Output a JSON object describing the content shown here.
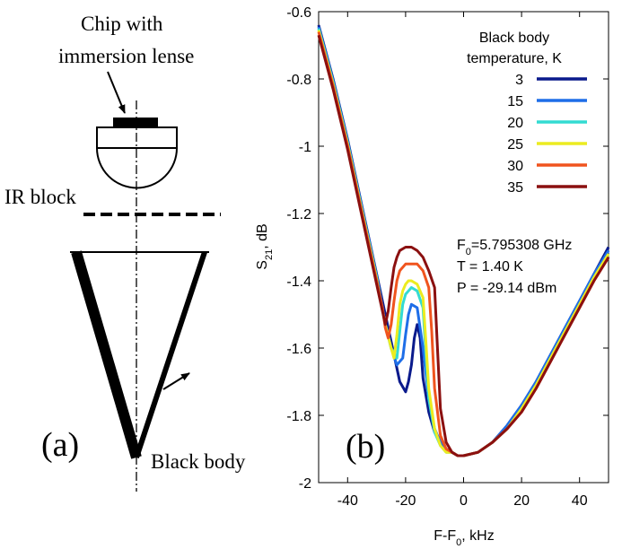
{
  "schematic": {
    "chip_label_line1": "Chip with",
    "chip_label_line2": "immersion lense",
    "ir_block_label": "IR block",
    "black_body_label": "Black body",
    "panel_label": "(a)"
  },
  "chart_data": {
    "type": "line",
    "panel_label": "(b)",
    "xlabel_main": "F-F",
    "xlabel_sub": "0",
    "xlabel_tail": ", kHz",
    "ylabel_main": "S",
    "ylabel_sub": "21",
    "ylabel_tail": ", dB",
    "xlim": [
      -50,
      50
    ],
    "ylim": [
      -2.0,
      -0.6
    ],
    "xticks": [
      -40,
      -20,
      0,
      20,
      40
    ],
    "xtick_labels": [
      "-40",
      "-20",
      "0",
      "20",
      "40"
    ],
    "yticks": [
      -2.0,
      -1.8,
      -1.6,
      -1.4,
      -1.2,
      -1.0,
      -0.8,
      -0.6
    ],
    "ytick_labels": [
      "-2",
      "-1.8",
      "-1.6",
      "-1.4",
      "-1.2",
      "-1",
      "-0.8",
      "-0.6"
    ],
    "grid": false,
    "legend_title_line1": "Black body",
    "legend_title_line2": "temperature, K",
    "legend_placement": "top-right",
    "annotation": {
      "f0_main": "F",
      "f0_sub": "0",
      "f0_tail": "=5.795308 GHz",
      "temperature": "T = 1.40 K",
      "power": "P = -29.14 dBm"
    },
    "series": [
      {
        "name": "3",
        "color": "#0a1a8c",
        "x": [
          -50,
          -45,
          -40,
          -35,
          -30,
          -26,
          -24,
          -22,
          -20,
          -19,
          -18,
          -17,
          -16,
          -15,
          -14,
          -12,
          -10,
          -8,
          -6,
          -4,
          -2,
          0,
          5,
          10,
          15,
          20,
          25,
          30,
          35,
          40,
          45,
          50
        ],
        "y": [
          -0.64,
          -0.8,
          -0.98,
          -1.18,
          -1.38,
          -1.54,
          -1.62,
          -1.7,
          -1.73,
          -1.7,
          -1.65,
          -1.57,
          -1.53,
          -1.57,
          -1.69,
          -1.79,
          -1.85,
          -1.88,
          -1.9,
          -1.91,
          -1.92,
          -1.92,
          -1.91,
          -1.88,
          -1.83,
          -1.77,
          -1.7,
          -1.62,
          -1.54,
          -1.46,
          -1.38,
          -1.3
        ]
      },
      {
        "name": "15",
        "color": "#1e6ee8",
        "x": [
          -50,
          -45,
          -40,
          -35,
          -30,
          -27,
          -25,
          -23,
          -21,
          -20,
          -19,
          -18,
          -16,
          -14,
          -12,
          -10,
          -8,
          -6,
          -4,
          -2,
          0,
          5,
          10,
          15,
          20,
          25,
          30,
          35,
          40,
          45,
          50
        ],
        "y": [
          -0.645,
          -0.805,
          -0.985,
          -1.185,
          -1.385,
          -1.53,
          -1.6,
          -1.65,
          -1.63,
          -1.56,
          -1.5,
          -1.47,
          -1.48,
          -1.6,
          -1.75,
          -1.84,
          -1.88,
          -1.9,
          -1.91,
          -1.92,
          -1.92,
          -1.91,
          -1.88,
          -1.83,
          -1.77,
          -1.7,
          -1.62,
          -1.54,
          -1.46,
          -1.38,
          -1.31
        ]
      },
      {
        "name": "20",
        "color": "#33dbd2",
        "x": [
          -50,
          -45,
          -40,
          -35,
          -30,
          -27,
          -25,
          -23,
          -22,
          -21,
          -20,
          -19,
          -18,
          -16,
          -14,
          -13,
          -12,
          -10,
          -8,
          -6,
          -4,
          -2,
          0,
          5,
          10,
          15,
          20,
          25,
          30,
          35,
          40,
          45,
          50
        ],
        "y": [
          -0.65,
          -0.81,
          -0.99,
          -1.19,
          -1.39,
          -1.53,
          -1.6,
          -1.63,
          -1.55,
          -1.47,
          -1.44,
          -1.43,
          -1.42,
          -1.43,
          -1.48,
          -1.62,
          -1.75,
          -1.85,
          -1.89,
          -1.91,
          -1.91,
          -1.92,
          -1.92,
          -1.91,
          -1.88,
          -1.84,
          -1.78,
          -1.71,
          -1.63,
          -1.55,
          -1.47,
          -1.39,
          -1.32
        ]
      },
      {
        "name": "25",
        "color": "#ecec20",
        "x": [
          -50,
          -45,
          -40,
          -35,
          -30,
          -27,
          -25,
          -24,
          -23,
          -22,
          -21,
          -20,
          -19,
          -18,
          -16,
          -14,
          -13,
          -12,
          -10,
          -8,
          -6,
          -4,
          -2,
          0,
          5,
          10,
          15,
          20,
          25,
          30,
          35,
          40,
          45,
          50
        ],
        "y": [
          -0.655,
          -0.815,
          -0.995,
          -1.195,
          -1.395,
          -1.53,
          -1.6,
          -1.63,
          -1.56,
          -1.47,
          -1.43,
          -1.41,
          -1.4,
          -1.4,
          -1.41,
          -1.45,
          -1.58,
          -1.72,
          -1.84,
          -1.89,
          -1.91,
          -1.91,
          -1.92,
          -1.92,
          -1.91,
          -1.88,
          -1.84,
          -1.78,
          -1.71,
          -1.63,
          -1.55,
          -1.47,
          -1.39,
          -1.32
        ]
      },
      {
        "name": "30",
        "color": "#f0541e",
        "x": [
          -50,
          -45,
          -40,
          -35,
          -30,
          -28,
          -27,
          -26,
          -25,
          -24,
          -23,
          -22,
          -20,
          -18,
          -16,
          -14,
          -12,
          -11,
          -10,
          -8,
          -6,
          -4,
          -2,
          0,
          5,
          10,
          15,
          20,
          25,
          30,
          35,
          40,
          45,
          50
        ],
        "y": [
          -0.66,
          -0.82,
          -1.0,
          -1.2,
          -1.4,
          -1.48,
          -1.54,
          -1.57,
          -1.53,
          -1.46,
          -1.4,
          -1.37,
          -1.35,
          -1.35,
          -1.35,
          -1.37,
          -1.42,
          -1.55,
          -1.72,
          -1.86,
          -1.9,
          -1.91,
          -1.92,
          -1.92,
          -1.91,
          -1.88,
          -1.84,
          -1.79,
          -1.72,
          -1.64,
          -1.56,
          -1.48,
          -1.4,
          -1.33
        ]
      },
      {
        "name": "35",
        "color": "#8b1010",
        "x": [
          -50,
          -45,
          -40,
          -35,
          -30,
          -28,
          -27,
          -26,
          -25,
          -24,
          -23,
          -22,
          -20,
          -18,
          -16,
          -14,
          -12,
          -10,
          -9,
          -8,
          -6,
          -4,
          -2,
          0,
          5,
          10,
          15,
          20,
          25,
          30,
          35,
          40,
          45,
          50
        ],
        "y": [
          -0.67,
          -0.83,
          -1.01,
          -1.21,
          -1.41,
          -1.49,
          -1.53,
          -1.49,
          -1.42,
          -1.36,
          -1.33,
          -1.31,
          -1.3,
          -1.3,
          -1.31,
          -1.33,
          -1.37,
          -1.42,
          -1.6,
          -1.78,
          -1.88,
          -1.91,
          -1.92,
          -1.92,
          -1.91,
          -1.88,
          -1.84,
          -1.79,
          -1.72,
          -1.64,
          -1.56,
          -1.48,
          -1.4,
          -1.33
        ]
      }
    ]
  }
}
